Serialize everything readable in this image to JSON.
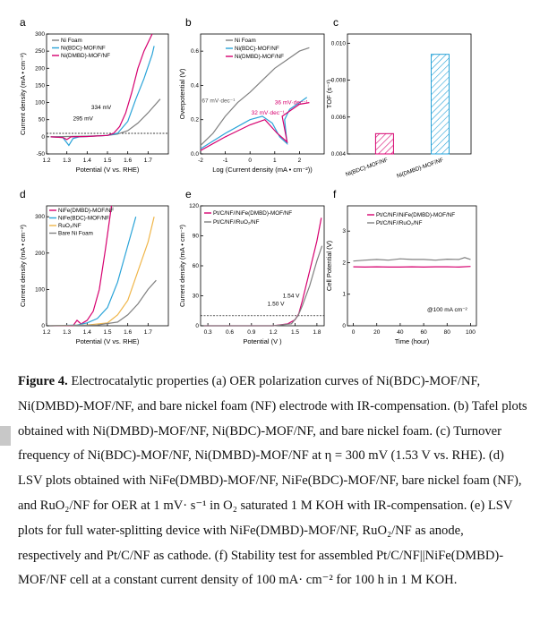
{
  "panels": {
    "a": {
      "label": "a",
      "chart_data": {
        "type": "line",
        "xlabel": "Potential (V vs. RHE)",
        "ylabel": "Current density (mA • cm⁻²)",
        "xlim": [
          1.2,
          1.8
        ],
        "ylim": [
          -50,
          300
        ],
        "xticks": [
          "1.2",
          "1.3",
          "1.4",
          "1.5",
          "1.6",
          "1.7"
        ],
        "yticks": [
          "-50",
          "0",
          "50",
          "100",
          "150",
          "200",
          "250",
          "300"
        ],
        "series": [
          {
            "name": "Ni Foam",
            "color": "#808080",
            "x": [
              1.22,
              1.3,
              1.4,
              1.5,
              1.55,
              1.6,
              1.65,
              1.7,
              1.76
            ],
            "y": [
              0,
              1,
              2,
              4,
              8,
              18,
              40,
              70,
              110
            ]
          },
          {
            "name": "Ni(BDC)-MOF/NF",
            "color": "#29a3d8",
            "x": [
              1.22,
              1.28,
              1.31,
              1.33,
              1.36,
              1.4,
              1.5,
              1.55,
              1.6,
              1.64,
              1.68,
              1.72,
              1.73
            ],
            "y": [
              0,
              -2,
              -25,
              -5,
              0,
              1,
              4,
              10,
              45,
              110,
              170,
              240,
              265
            ]
          },
          {
            "name": "Ni(DMBD)-MOF/NF",
            "color": "#d6006f",
            "x": [
              1.22,
              1.28,
              1.3,
              1.32,
              1.4,
              1.5,
              1.53,
              1.56,
              1.59,
              1.62,
              1.65,
              1.68,
              1.72
            ],
            "y": [
              0,
              -2,
              -8,
              0,
              1,
              4,
              10,
              30,
              70,
              130,
              200,
              250,
              300
            ]
          }
        ],
        "annotations": [
          "334 mV",
          "295 mV"
        ]
      }
    },
    "b": {
      "label": "b",
      "chart_data": {
        "type": "line",
        "xlabel": "Log (Current density (mA • cm⁻²))",
        "ylabel": "Overpotential (V)",
        "xlim": [
          -2,
          3
        ],
        "ylim": [
          0,
          0.7
        ],
        "xticks": [
          "-2",
          "-1",
          "0",
          "1",
          "2"
        ],
        "yticks": [
          "0.0",
          "0.2",
          "0.4",
          "0.6"
        ],
        "series": [
          {
            "name": "Ni Foam",
            "color": "#808080",
            "x": [
              -2,
              -1.5,
              -1,
              -0.5,
              0,
              0.5,
              1,
              1.5,
              2,
              2.4
            ],
            "y": [
              0.05,
              0.12,
              0.22,
              0.3,
              0.36,
              0.43,
              0.5,
              0.55,
              0.6,
              0.62
            ]
          },
          {
            "name": "Ni(BDC)-MOF/NF",
            "color": "#29a3d8",
            "x": [
              -2,
              -1,
              0,
              0.5,
              0.9,
              1.2,
              1.5,
              1.4,
              1.6,
              2,
              2.3
            ],
            "y": [
              0.03,
              0.12,
              0.2,
              0.22,
              0.18,
              0.1,
              0.06,
              0.2,
              0.26,
              0.3,
              0.33
            ]
          },
          {
            "name": "Ni(DMBD)-MOF/NF",
            "color": "#d6006f",
            "x": [
              -2,
              -1,
              0,
              0.6,
              1.1,
              1.5,
              1.3,
              1.6,
              2,
              2.4
            ],
            "y": [
              0.02,
              0.1,
              0.17,
              0.2,
              0.12,
              0.07,
              0.22,
              0.25,
              0.29,
              0.3
            ]
          }
        ],
        "annotations": [
          "67 mV·dec⁻¹",
          "36 mV·dec⁻¹",
          "32 mV·dec⁻¹"
        ]
      }
    },
    "c": {
      "label": "c",
      "chart_data": {
        "type": "bar",
        "ylabel": "TOF (s⁻¹)",
        "ylim": [
          0.004,
          0.0105
        ],
        "yticks": [
          "0.004",
          "0.006",
          "0.008",
          "0.010"
        ],
        "categories": [
          "Ni(BDC)-MOF/NF",
          "Ni(DMBD)-MOF/NF"
        ],
        "values": [
          0.0051,
          0.0094
        ],
        "colors": [
          "#d6006f",
          "#29a3d8"
        ]
      }
    },
    "d": {
      "label": "d",
      "chart_data": {
        "type": "line",
        "xlabel": "Potential (V vs. RHE)",
        "ylabel": "Current density (mA • cm⁻²)",
        "xlim": [
          1.2,
          1.8
        ],
        "ylim": [
          0,
          330
        ],
        "xticks": [
          "1.2",
          "1.3",
          "1.4",
          "1.5",
          "1.6",
          "1.7"
        ],
        "yticks": [
          "0",
          "100",
          "200",
          "300"
        ],
        "series": [
          {
            "name": "NiFe(DMBD)-MOF/NF",
            "color": "#d6006f",
            "x": [
              1.22,
              1.33,
              1.35,
              1.37,
              1.4,
              1.43,
              1.46,
              1.49,
              1.52
            ],
            "y": [
              0,
              0,
              15,
              5,
              15,
              40,
              100,
              210,
              330
            ]
          },
          {
            "name": "NiFe(BDC)-MOF/NF",
            "color": "#29a3d8",
            "x": [
              1.22,
              1.35,
              1.4,
              1.45,
              1.5,
              1.55,
              1.58,
              1.62,
              1.64
            ],
            "y": [
              0,
              2,
              8,
              20,
              50,
              120,
              180,
              260,
              300
            ]
          },
          {
            "name": "RuO₂/NF",
            "color": "#f0b64a",
            "x": [
              1.22,
              1.4,
              1.5,
              1.55,
              1.6,
              1.65,
              1.7,
              1.73
            ],
            "y": [
              0,
              2,
              8,
              30,
              70,
              150,
              230,
              300
            ]
          },
          {
            "name": "Bare Ni Foam",
            "color": "#808080",
            "x": [
              1.22,
              1.45,
              1.55,
              1.6,
              1.65,
              1.7,
              1.74
            ],
            "y": [
              0,
              2,
              10,
              30,
              60,
              100,
              125
            ]
          }
        ]
      }
    },
    "e": {
      "label": "e",
      "chart_data": {
        "type": "line",
        "xlabel": "Potential (V )",
        "ylabel": "Current density (mA • cm⁻²)",
        "xlim": [
          0.2,
          1.9
        ],
        "ylim": [
          0,
          120
        ],
        "xticks": [
          "0.3",
          "0.6",
          "0.9",
          "1.2",
          "1.5",
          "1.8"
        ],
        "yticks": [
          "0",
          "30",
          "60",
          "90",
          "120"
        ],
        "series": [
          {
            "name": "Pt/C/NF//NiFe(DMBD)-MOF/NF",
            "color": "#d6006f",
            "x": [
              0.25,
              1.2,
              1.4,
              1.5,
              1.55,
              1.6,
              1.7,
              1.8,
              1.86
            ],
            "y": [
              0,
              0,
              2,
              6,
              12,
              25,
              55,
              85,
              108
            ]
          },
          {
            "name": "Pt/C/NF//RuO₂/NF",
            "color": "#808080",
            "x": [
              0.25,
              1.2,
              1.45,
              1.54,
              1.6,
              1.7,
              1.8,
              1.87
            ],
            "y": [
              0,
              0,
              2,
              10,
              20,
              40,
              65,
              80
            ]
          }
        ],
        "annotations": [
          "1.54 V",
          "1.50 V"
        ]
      }
    },
    "f": {
      "label": "f",
      "chart_data": {
        "type": "line",
        "xlabel": "Time (hour)",
        "ylabel": "Cell Potential (V)",
        "xlim": [
          -5,
          105
        ],
        "ylim": [
          0,
          3.8
        ],
        "xticks": [
          "0",
          "20",
          "40",
          "60",
          "80",
          "100"
        ],
        "yticks": [
          "0",
          "1",
          "2",
          "3"
        ],
        "series": [
          {
            "name": "Pt/C/NF//NiFe(DMBD)-MOF/NF",
            "color": "#d6006f",
            "x": [
              0,
              10,
              20,
              30,
              40,
              50,
              60,
              70,
              80,
              90,
              100
            ],
            "y": [
              1.87,
              1.86,
              1.87,
              1.86,
              1.86,
              1.87,
              1.86,
              1.87,
              1.87,
              1.86,
              1.88
            ]
          },
          {
            "name": "Pt/C/NF//RuO₂/NF",
            "color": "#808080",
            "x": [
              0,
              10,
              20,
              30,
              40,
              50,
              60,
              70,
              80,
              90,
              95,
              100
            ],
            "y": [
              2.05,
              2.08,
              2.1,
              2.08,
              2.12,
              2.1,
              2.1,
              2.08,
              2.11,
              2.1,
              2.16,
              2.1
            ]
          }
        ],
        "annotations": [
          "@100 mA cm⁻²"
        ]
      }
    }
  },
  "caption": {
    "fig_label": "Figure 4.",
    "text": "Electrocatalytic properties (a) OER polarization curves of Ni(BDC)-MOF/NF, Ni(DMBD)-MOF/NF, and bare nickel foam (NF) electrode with IR-compensation. (b) Tafel plots obtained with Ni(DMBD)-MOF/NF, Ni(BDC)-MOF/NF, and bare nickel foam. (c) Turnover frequency of Ni(BDC)-MOF/NF, Ni(DMBD)-MOF/NF at η = 300 mV (1.53 V vs. RHE). (d) LSV plots obtained with NiFe(DMBD)-MOF/NF, NiFe(BDC)-MOF/NF, bare nickel foam (NF), and RuO₂/NF for OER at 1 mV· s⁻¹ in O₂ saturated 1  M KOH with IR-compensation. (e) LSV plots for full water-splitting device with NiFe(DMBD)-MOF/NF, RuO₂/NF as anode, respectively and Pt/C/NF as cathode. (f) Stability test for assembled Pt/C/NF||NiFe(DMBD)-MOF/NF cell at a constant current density of 100 mA· cm⁻² for 100 h in 1 M KOH."
  }
}
